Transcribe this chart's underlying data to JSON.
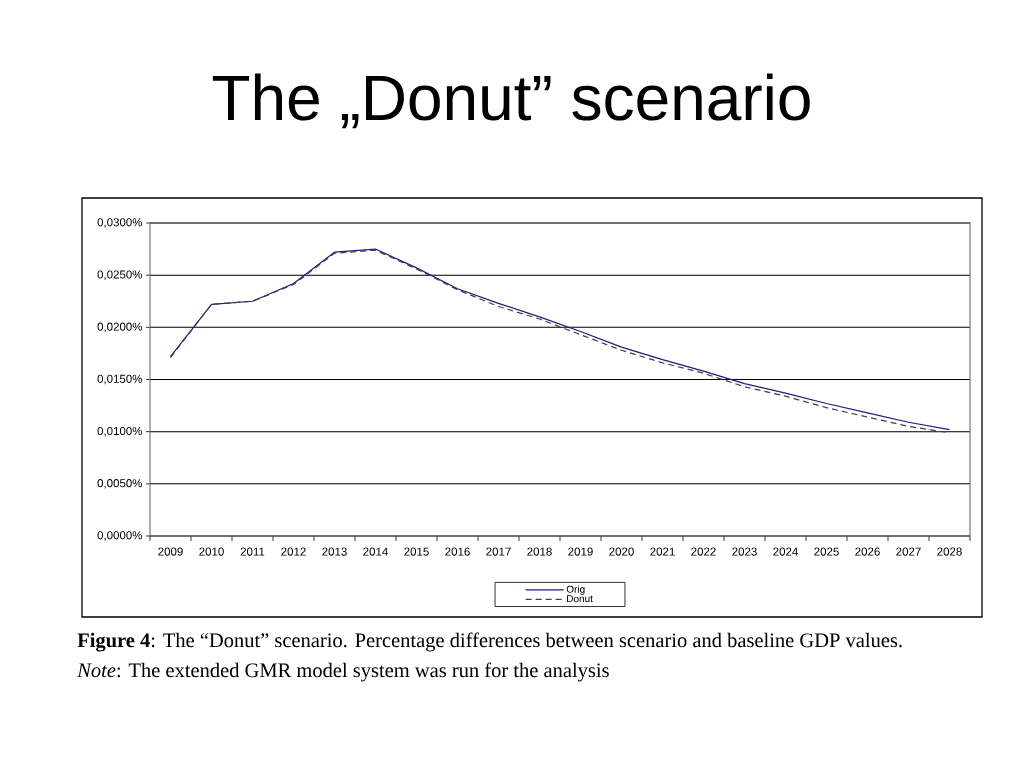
{
  "chart_data": {
    "type": "line",
    "title": "The „Donut” scenario",
    "categories": [
      "2009",
      "2010",
      "2011",
      "2012",
      "2013",
      "2014",
      "2015",
      "2016",
      "2017",
      "2018",
      "2019",
      "2020",
      "2021",
      "2022",
      "2023",
      "2024",
      "2025",
      "2026",
      "2027",
      "2028"
    ],
    "series": [
      {
        "name": "Orig",
        "color": "#1c1c84",
        "line_style": "solid",
        "values": [
          0.0172,
          0.0222,
          0.0225,
          0.0242,
          0.0272,
          0.0275,
          0.0257,
          0.0237,
          0.0223,
          0.021,
          0.0196,
          0.0181,
          0.0169,
          0.0158,
          0.0146,
          0.0137,
          0.0127,
          0.0118,
          0.0109,
          0.0102
        ]
      },
      {
        "name": "Donut",
        "color": "#404040",
        "line_style": "dashed",
        "values": [
          0.0171,
          0.0222,
          0.0225,
          0.0241,
          0.0271,
          0.0274,
          0.0256,
          0.0236,
          0.022,
          0.0208,
          0.0193,
          0.0178,
          0.0166,
          0.0156,
          0.0143,
          0.0134,
          0.0123,
          0.0114,
          0.0105,
          0.0099
        ]
      }
    ],
    "ylim": [
      0,
      0.03
    ],
    "yticks": [
      {
        "value": 0,
        "label": "0,0000%"
      },
      {
        "value": 0.005,
        "label": "0,0050%"
      },
      {
        "value": 0.01,
        "label": "0,0100%"
      },
      {
        "value": 0.015,
        "label": "0,0150%"
      },
      {
        "value": 0.02,
        "label": "0,0200%"
      },
      {
        "value": 0.025,
        "label": "0,0250%"
      },
      {
        "value": 0.03,
        "label": "0,0300%"
      }
    ],
    "grid": "y",
    "legend": "bottom",
    "marker": "none",
    "annotations": [
      "**Figure 4**: The “Donut” scenario. Percentage differences between scenario and baseline GDP values.",
      "*Note*: The extended GMR model system was run for the analysis"
    ]
  }
}
